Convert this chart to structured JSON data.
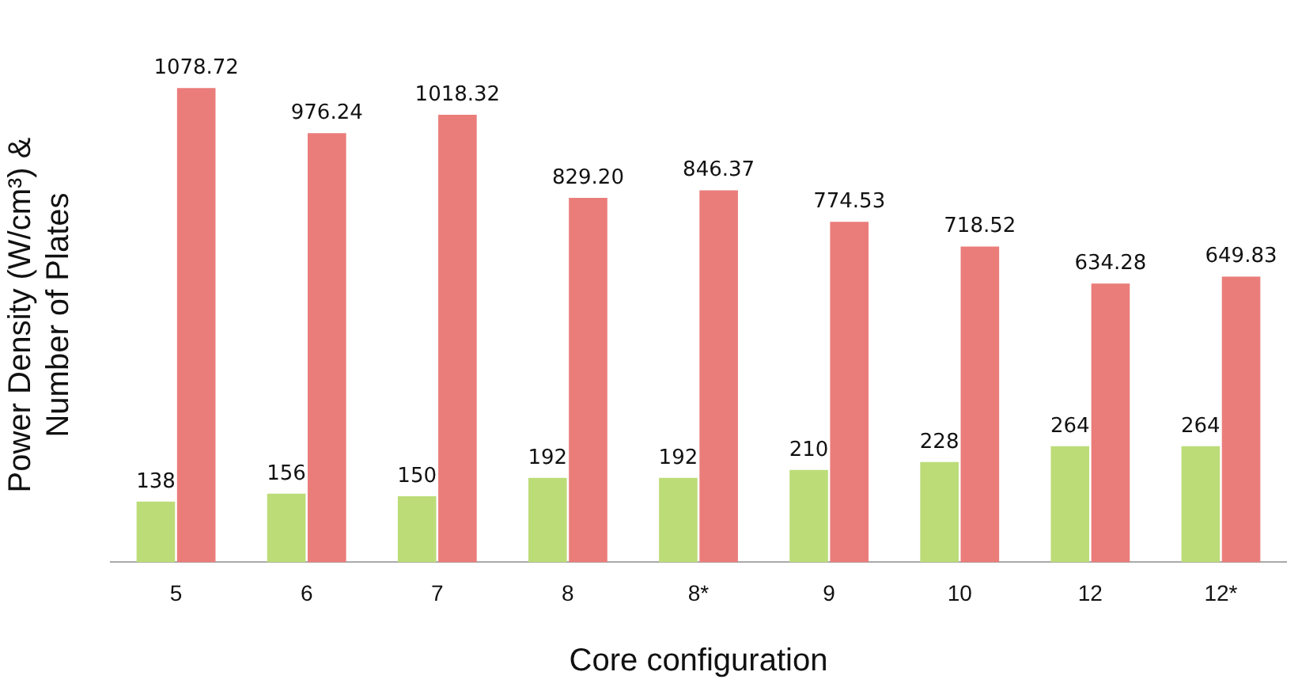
{
  "chart_data": {
    "type": "bar",
    "xlabel": "Core configuration",
    "ylabel": "Power Density (W/cm³) & Number of Plates",
    "categories": [
      "5",
      "6",
      "7",
      "8",
      "8*",
      "9",
      "10",
      "12",
      "12*"
    ],
    "series": [
      {
        "color": "#bcdc78",
        "values": [
          138,
          156,
          150,
          192,
          192,
          210,
          228,
          264,
          264
        ],
        "value_labels": [
          "138",
          "156",
          "150",
          "192",
          "192",
          "210",
          "228",
          "264",
          "264"
        ]
      },
      {
        "color": "#ea7d7a",
        "values": [
          1078.72,
          976.24,
          1018.32,
          829.2,
          846.37,
          774.53,
          718.52,
          634.28,
          649.83
        ],
        "value_labels": [
          "1078.72",
          "976.24",
          "1018.32",
          "829.20",
          "846.37",
          "774.53",
          "718.52",
          "634.28",
          "649.83"
        ]
      }
    ],
    "legend": false,
    "grid": false
  }
}
